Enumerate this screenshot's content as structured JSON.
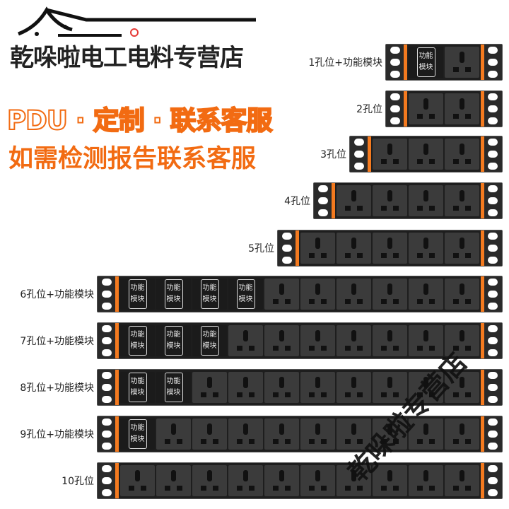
{
  "logo": {
    "icon": "house-roof-icon",
    "text": "乾哚啦电工电料专营店",
    "accent": "#e53935"
  },
  "promo": {
    "line1": "PDU · 定制 · 联系客服",
    "line2": "如需检测报告联系客服",
    "color": "#f26b12"
  },
  "module_text": "功能\n模块",
  "strips": [
    {
      "label": "1孔位+功能模块",
      "modules": 1,
      "sockets": 1
    },
    {
      "label": "2孔位",
      "modules": 0,
      "sockets": 2
    },
    {
      "label": "3孔位",
      "modules": 0,
      "sockets": 3
    },
    {
      "label": "4孔位",
      "modules": 0,
      "sockets": 4
    },
    {
      "label": "5孔位",
      "modules": 0,
      "sockets": 5
    },
    {
      "label": "6孔位+功能模块",
      "modules": 4,
      "sockets": 6
    },
    {
      "label": "7孔位+功能模块",
      "modules": 3,
      "sockets": 7
    },
    {
      "label": "8孔位+功能模块",
      "modules": 2,
      "sockets": 8
    },
    {
      "label": "9孔位+功能模块",
      "modules": 1,
      "sockets": 9
    },
    {
      "label": "10孔位",
      "modules": 0,
      "sockets": 10
    }
  ],
  "colors": {
    "strip": "#1e1e1e",
    "socket": "#3b3b3b",
    "accent_bar": "#f47a1f"
  },
  "watermark": "乾哚啦专营店"
}
